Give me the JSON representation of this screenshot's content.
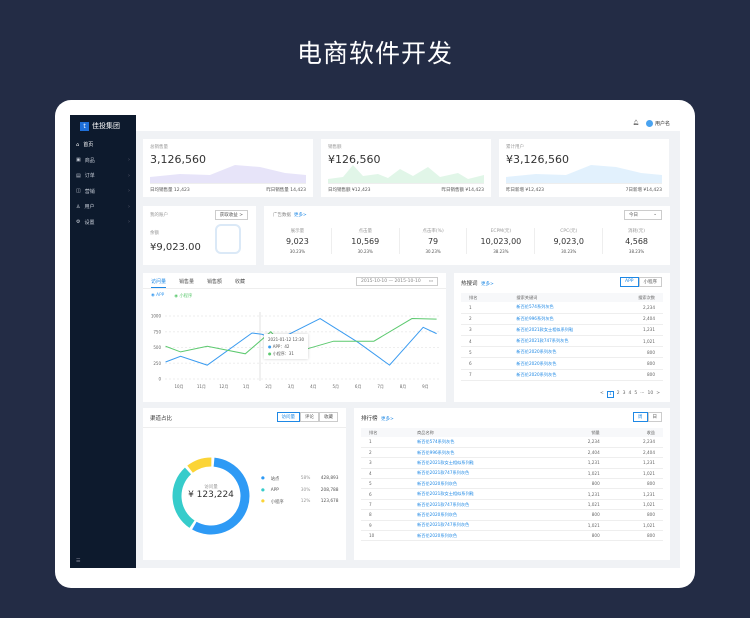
{
  "page_title": "电商软件开发",
  "sidebar": {
    "logo": "佳投集团",
    "logo_sub": "JIA TOU GROUP",
    "items": [
      {
        "label": "首页",
        "icon": "home-icon"
      },
      {
        "label": "商品",
        "icon": "goods-icon"
      },
      {
        "label": "订单",
        "icon": "order-icon"
      },
      {
        "label": "营销",
        "icon": "marketing-icon"
      },
      {
        "label": "用户",
        "icon": "user-icon"
      },
      {
        "label": "设置",
        "icon": "settings-icon"
      }
    ]
  },
  "header": {
    "username": "用户名"
  },
  "stats": [
    {
      "label": "总销售量",
      "value": "3,126,560",
      "left": "日均销售量 12,423",
      "right": "昨日销售量 14,423",
      "color": "#c9c3f2"
    },
    {
      "label": "销售额",
      "value": "¥126,560",
      "left": "日均销售额 ¥12,423",
      "right": "昨日销售额 ¥14,423",
      "color": "#bdeccb"
    },
    {
      "label": "累计用户",
      "value": "¥3,126,560",
      "left": "昨日新增 ¥12,423",
      "right": "7日新增 ¥14,423",
      "color": "#bfe0fa"
    }
  ],
  "account": {
    "title": "我的账户",
    "button": "获取收益 >",
    "balance_label": "余额",
    "balance": "¥9,023.00"
  },
  "ads": {
    "title": "广告数据",
    "more": "更多>",
    "period": "今日",
    "metrics": [
      {
        "label": "展示量",
        "value": "9,023",
        "rate": "30.23%"
      },
      {
        "label": "点击量",
        "value": "10,569",
        "rate": "30.23%"
      },
      {
        "label": "点击率(%)",
        "value": "79",
        "rate": "30.23%"
      },
      {
        "label": "ECPM(元)",
        "value": "10,023,00",
        "rate": "38.23%"
      },
      {
        "label": "CPC(元)",
        "value": "9,023,0",
        "rate": "30.23%"
      },
      {
        "label": "消耗(元)",
        "value": "4,568",
        "rate": "38.23%"
      }
    ]
  },
  "trend": {
    "tabs": [
      "访问量",
      "销售量",
      "销售额",
      "收藏"
    ],
    "date_from": "2015-10-10",
    "date_sep": "—",
    "date_to": "2015-10-10",
    "tooltip": {
      "time": "2021-01-12 12:30",
      "app": "APP：42",
      "mini": "小程序：31"
    }
  },
  "chart_data": {
    "type": "line",
    "categories": [
      "10月",
      "11月",
      "12月",
      "1月",
      "2月",
      "3月",
      "4月",
      "5月",
      "6月",
      "7月",
      "8月",
      "9月"
    ],
    "ylim": [
      0,
      1000
    ],
    "yticks": [
      0,
      250,
      500,
      750,
      1000
    ],
    "grid": true,
    "legend": "top-left",
    "series": [
      {
        "name": "APP",
        "color": "#3a9bf0",
        "points": [
          [
            -0.6,
            270
          ],
          [
            0.07,
            360
          ],
          [
            1.26,
            220
          ],
          [
            3.26,
            730
          ],
          [
            3.7,
            710
          ],
          [
            4.4,
            620
          ],
          [
            6.3,
            960
          ],
          [
            8.0,
            580
          ],
          [
            9.4,
            220
          ],
          [
            10.9,
            820
          ],
          [
            11.5,
            720
          ]
        ]
      },
      {
        "name": "小程序",
        "color": "#5cc96f",
        "points": [
          [
            -0.6,
            520
          ],
          [
            0.07,
            430
          ],
          [
            1.26,
            520
          ],
          [
            2.96,
            400
          ],
          [
            4.1,
            750
          ],
          [
            4.95,
            400
          ],
          [
            6.9,
            600
          ],
          [
            8.7,
            600
          ],
          [
            10.4,
            960
          ],
          [
            11.5,
            950
          ]
        ]
      }
    ]
  },
  "hot": {
    "title": "热搜词",
    "more": "更多>",
    "toggle": [
      "APP",
      "小程序"
    ],
    "headers": [
      "排名",
      "搜索关键词",
      "搜索次数"
    ],
    "rows": [
      [
        "1",
        "新百伦574系列灰色",
        "2,234"
      ],
      [
        "2",
        "新百伦996系列灰色",
        "2,404"
      ],
      [
        "3",
        "新百伦2021款女士相似系列鞋",
        "1,231"
      ],
      [
        "4",
        "新百伦2021款747系列灰色",
        "1,021"
      ],
      [
        "5",
        "新百伦2020系列灰色",
        "800"
      ],
      [
        "6",
        "新百伦2020系列灰色",
        "800"
      ],
      [
        "7",
        "新百伦2020系列灰色",
        "800"
      ]
    ],
    "pages": [
      "<",
      "1",
      "2",
      "3",
      "4",
      "5",
      "···",
      "10",
      ">"
    ]
  },
  "channel": {
    "title": "渠道占比",
    "tabs": [
      "访问量",
      "评论",
      "收藏"
    ],
    "center_label": "访问量",
    "center_value": "¥ 123,224",
    "items": [
      {
        "name": "站点",
        "pct": "58%",
        "value": "428,893",
        "share": 58,
        "color": "#2e9af5"
      },
      {
        "name": "APP",
        "pct": "30%",
        "value": "208,788",
        "share": 30,
        "color": "#36cccb"
      },
      {
        "name": "小程序",
        "pct": "12%",
        "value": "123,678",
        "share": 12,
        "color": "#fbd437"
      }
    ]
  },
  "rank": {
    "title": "排行榜",
    "more": "更多>",
    "toggle": [
      "周",
      "日"
    ],
    "headers": [
      "排名",
      "商品名称",
      "销量",
      "收益"
    ],
    "rows": [
      [
        "1",
        "新百伦574系列灰色",
        "2,234",
        "2,234"
      ],
      [
        "2",
        "新百伦996系列灰色",
        "2,404",
        "2,404"
      ],
      [
        "3",
        "新百伦2021款女士相似系列鞋",
        "1,231",
        "1,231"
      ],
      [
        "4",
        "新百伦2021款747系列灰色",
        "1,021",
        "1,021"
      ],
      [
        "5",
        "新百伦2020系列灰色",
        "800",
        "800"
      ],
      [
        "6",
        "新百伦2021款女士相似系列鞋",
        "1,231",
        "1,231"
      ],
      [
        "7",
        "新百伦2021款747系列灰色",
        "1,021",
        "1,021"
      ],
      [
        "8",
        "新百伦2020系列灰色",
        "800",
        "800"
      ],
      [
        "9",
        "新百伦2021款747系列灰色",
        "1,021",
        "1,021"
      ],
      [
        "10",
        "新百伦2020系列灰色",
        "800",
        "800"
      ]
    ]
  }
}
